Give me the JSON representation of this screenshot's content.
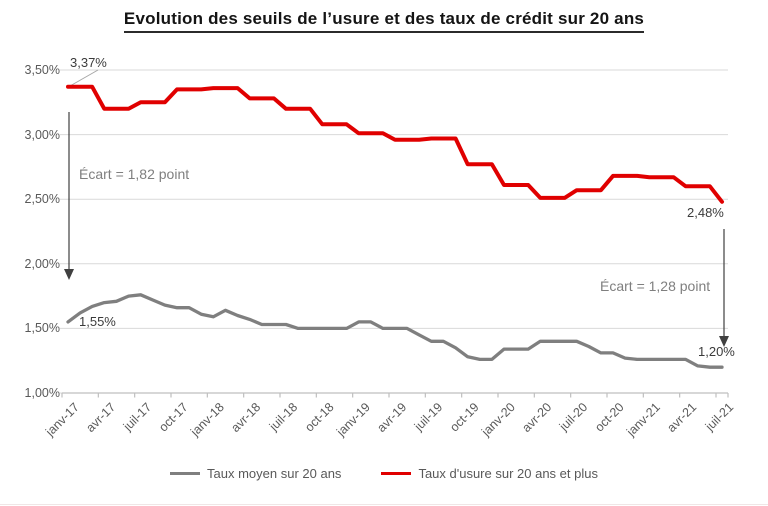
{
  "title": "Evolution des seuils de l’usure et des taux de crédit sur 20 ans",
  "colors": {
    "usure": "#e00000",
    "moyen": "#7f7f7f",
    "grid": "#d9d9d9",
    "axis": "#bfbfbf",
    "axis_text": "#595959",
    "arrow": "#404040",
    "leader": "#a6a6a6"
  },
  "legend": {
    "moyen": "Taux moyen sur 20 ans",
    "usure": "Taux d'usure sur 20 ans et plus"
  },
  "annotations": {
    "start_usure": "3,37%",
    "start_moyen": "1,55%",
    "end_usure": "2,48%",
    "end_moyen": "1,20%",
    "ecart_left": "Écart = 1,82 point",
    "ecart_right": "Écart = 1,28 point"
  },
  "chart_data": {
    "type": "line",
    "title": "Evolution des seuils de l’usure et des taux de crédit sur 20 ans",
    "xlabel": "",
    "ylabel": "",
    "x_unit": "month",
    "x_start": "janv-17",
    "x_end": "juil-21",
    "ylim": [
      1.0,
      3.5
    ],
    "grid": true,
    "legend_position": "bottom",
    "y_ticks": [
      {
        "label": "3,50%",
        "value": 3.5
      },
      {
        "label": "3,00%",
        "value": 3.0
      },
      {
        "label": "2,50%",
        "value": 2.5
      },
      {
        "label": "2,00%",
        "value": 2.0
      },
      {
        "label": "1,50%",
        "value": 1.5
      },
      {
        "label": "1,00%",
        "value": 1.0
      }
    ],
    "x_tick_labels": [
      "janv-17",
      "avr-17",
      "juil-17",
      "oct-17",
      "janv-18",
      "avr-18",
      "juil-18",
      "oct-18",
      "janv-19",
      "avr-19",
      "juil-19",
      "oct-19",
      "janv-20",
      "avr-20",
      "juil-20",
      "oct-20",
      "janv-21",
      "avr-21",
      "juil-21"
    ],
    "x_ticks_every_months": 3,
    "series": [
      {
        "name": "Taux moyen sur 20 ans",
        "color": "#7f7f7f",
        "width": 3.3,
        "values": [
          1.55,
          1.62,
          1.67,
          1.7,
          1.71,
          1.75,
          1.76,
          1.72,
          1.68,
          1.66,
          1.66,
          1.61,
          1.59,
          1.64,
          1.6,
          1.57,
          1.53,
          1.53,
          1.53,
          1.5,
          1.5,
          1.5,
          1.5,
          1.5,
          1.55,
          1.55,
          1.5,
          1.5,
          1.5,
          1.45,
          1.4,
          1.4,
          1.35,
          1.28,
          1.26,
          1.26,
          1.34,
          1.34,
          1.34,
          1.4,
          1.4,
          1.4,
          1.4,
          1.36,
          1.31,
          1.31,
          1.27,
          1.26,
          1.26,
          1.26,
          1.26,
          1.26,
          1.21,
          1.2,
          1.2
        ]
      },
      {
        "name": "Taux d'usure sur 20 ans et plus",
        "color": "#e00000",
        "width": 4,
        "values": [
          3.37,
          3.37,
          3.37,
          3.2,
          3.2,
          3.2,
          3.25,
          3.25,
          3.25,
          3.35,
          3.35,
          3.35,
          3.36,
          3.36,
          3.36,
          3.28,
          3.28,
          3.28,
          3.2,
          3.2,
          3.2,
          3.08,
          3.08,
          3.08,
          3.01,
          3.01,
          3.01,
          2.96,
          2.96,
          2.96,
          2.97,
          2.97,
          2.97,
          2.77,
          2.77,
          2.77,
          2.61,
          2.61,
          2.61,
          2.51,
          2.51,
          2.51,
          2.57,
          2.57,
          2.57,
          2.68,
          2.68,
          2.68,
          2.67,
          2.67,
          2.67,
          2.6,
          2.6,
          2.6,
          2.48
        ]
      }
    ]
  }
}
